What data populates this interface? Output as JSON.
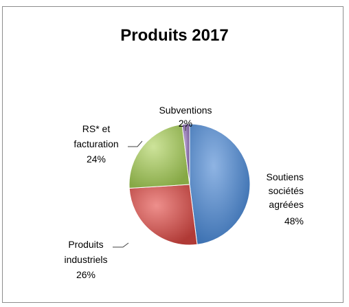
{
  "chart_data": {
    "type": "pie",
    "title": "Produits 2017",
    "slices": [
      {
        "name": "Soutiens sociétés agréées",
        "lines": [
          "Soutiens",
          "sociétés",
          "agréées"
        ],
        "value": 48,
        "pct_label": "48%",
        "color": "#4f81bd"
      },
      {
        "name": "Produits industriels",
        "lines": [
          "Produits",
          "industriels"
        ],
        "value": 26,
        "pct_label": "26%",
        "color": "#c0504d"
      },
      {
        "name": "RS* et facturation",
        "lines": [
          "RS* et",
          "facturation"
        ],
        "value": 24,
        "pct_label": "24%",
        "color": "#9bbb59"
      },
      {
        "name": "Subventions",
        "lines": [
          "Subventions"
        ],
        "value": 2,
        "pct_label": "2%",
        "color": "#8064a2"
      }
    ]
  }
}
